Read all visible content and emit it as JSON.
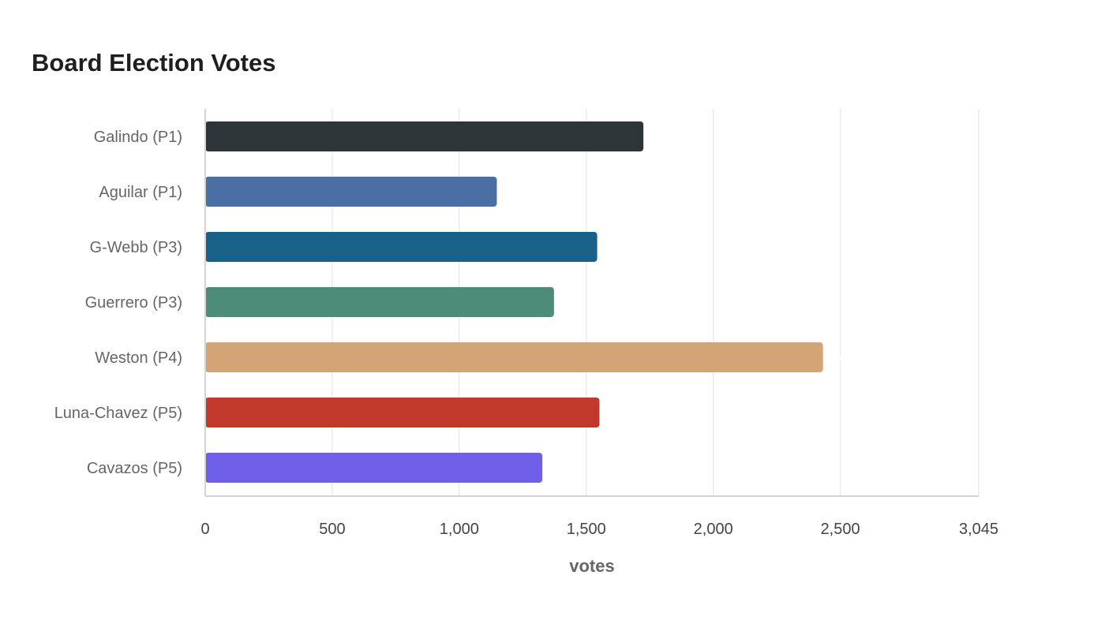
{
  "chart_data": {
    "type": "bar",
    "orientation": "horizontal",
    "title": "Board Election Votes",
    "xlabel": "votes",
    "ylabel": "",
    "categories": [
      "Galindo (P1)",
      "Aguilar (P1)",
      "G-Webb (P3)",
      "Guerrero (P3)",
      "Weston (P4)",
      "Luna-Chavez (P5)",
      "Cavazos (P5)"
    ],
    "values": [
      1725,
      1148,
      1543,
      1373,
      2432,
      1552,
      1327
    ],
    "colors": [
      "#2e3538",
      "#4a6fa5",
      "#186289",
      "#4e8c7a",
      "#d4a574",
      "#c0392b",
      "#6f5ee8"
    ],
    "xlim": [
      0,
      3045
    ],
    "xticks": [
      0,
      500,
      1000,
      1500,
      2000,
      2500,
      3045
    ],
    "xtick_labels": [
      "0",
      "500",
      "1,000",
      "1,500",
      "2,000",
      "2,500",
      "3,045"
    ],
    "grid": true,
    "legend": "none"
  }
}
